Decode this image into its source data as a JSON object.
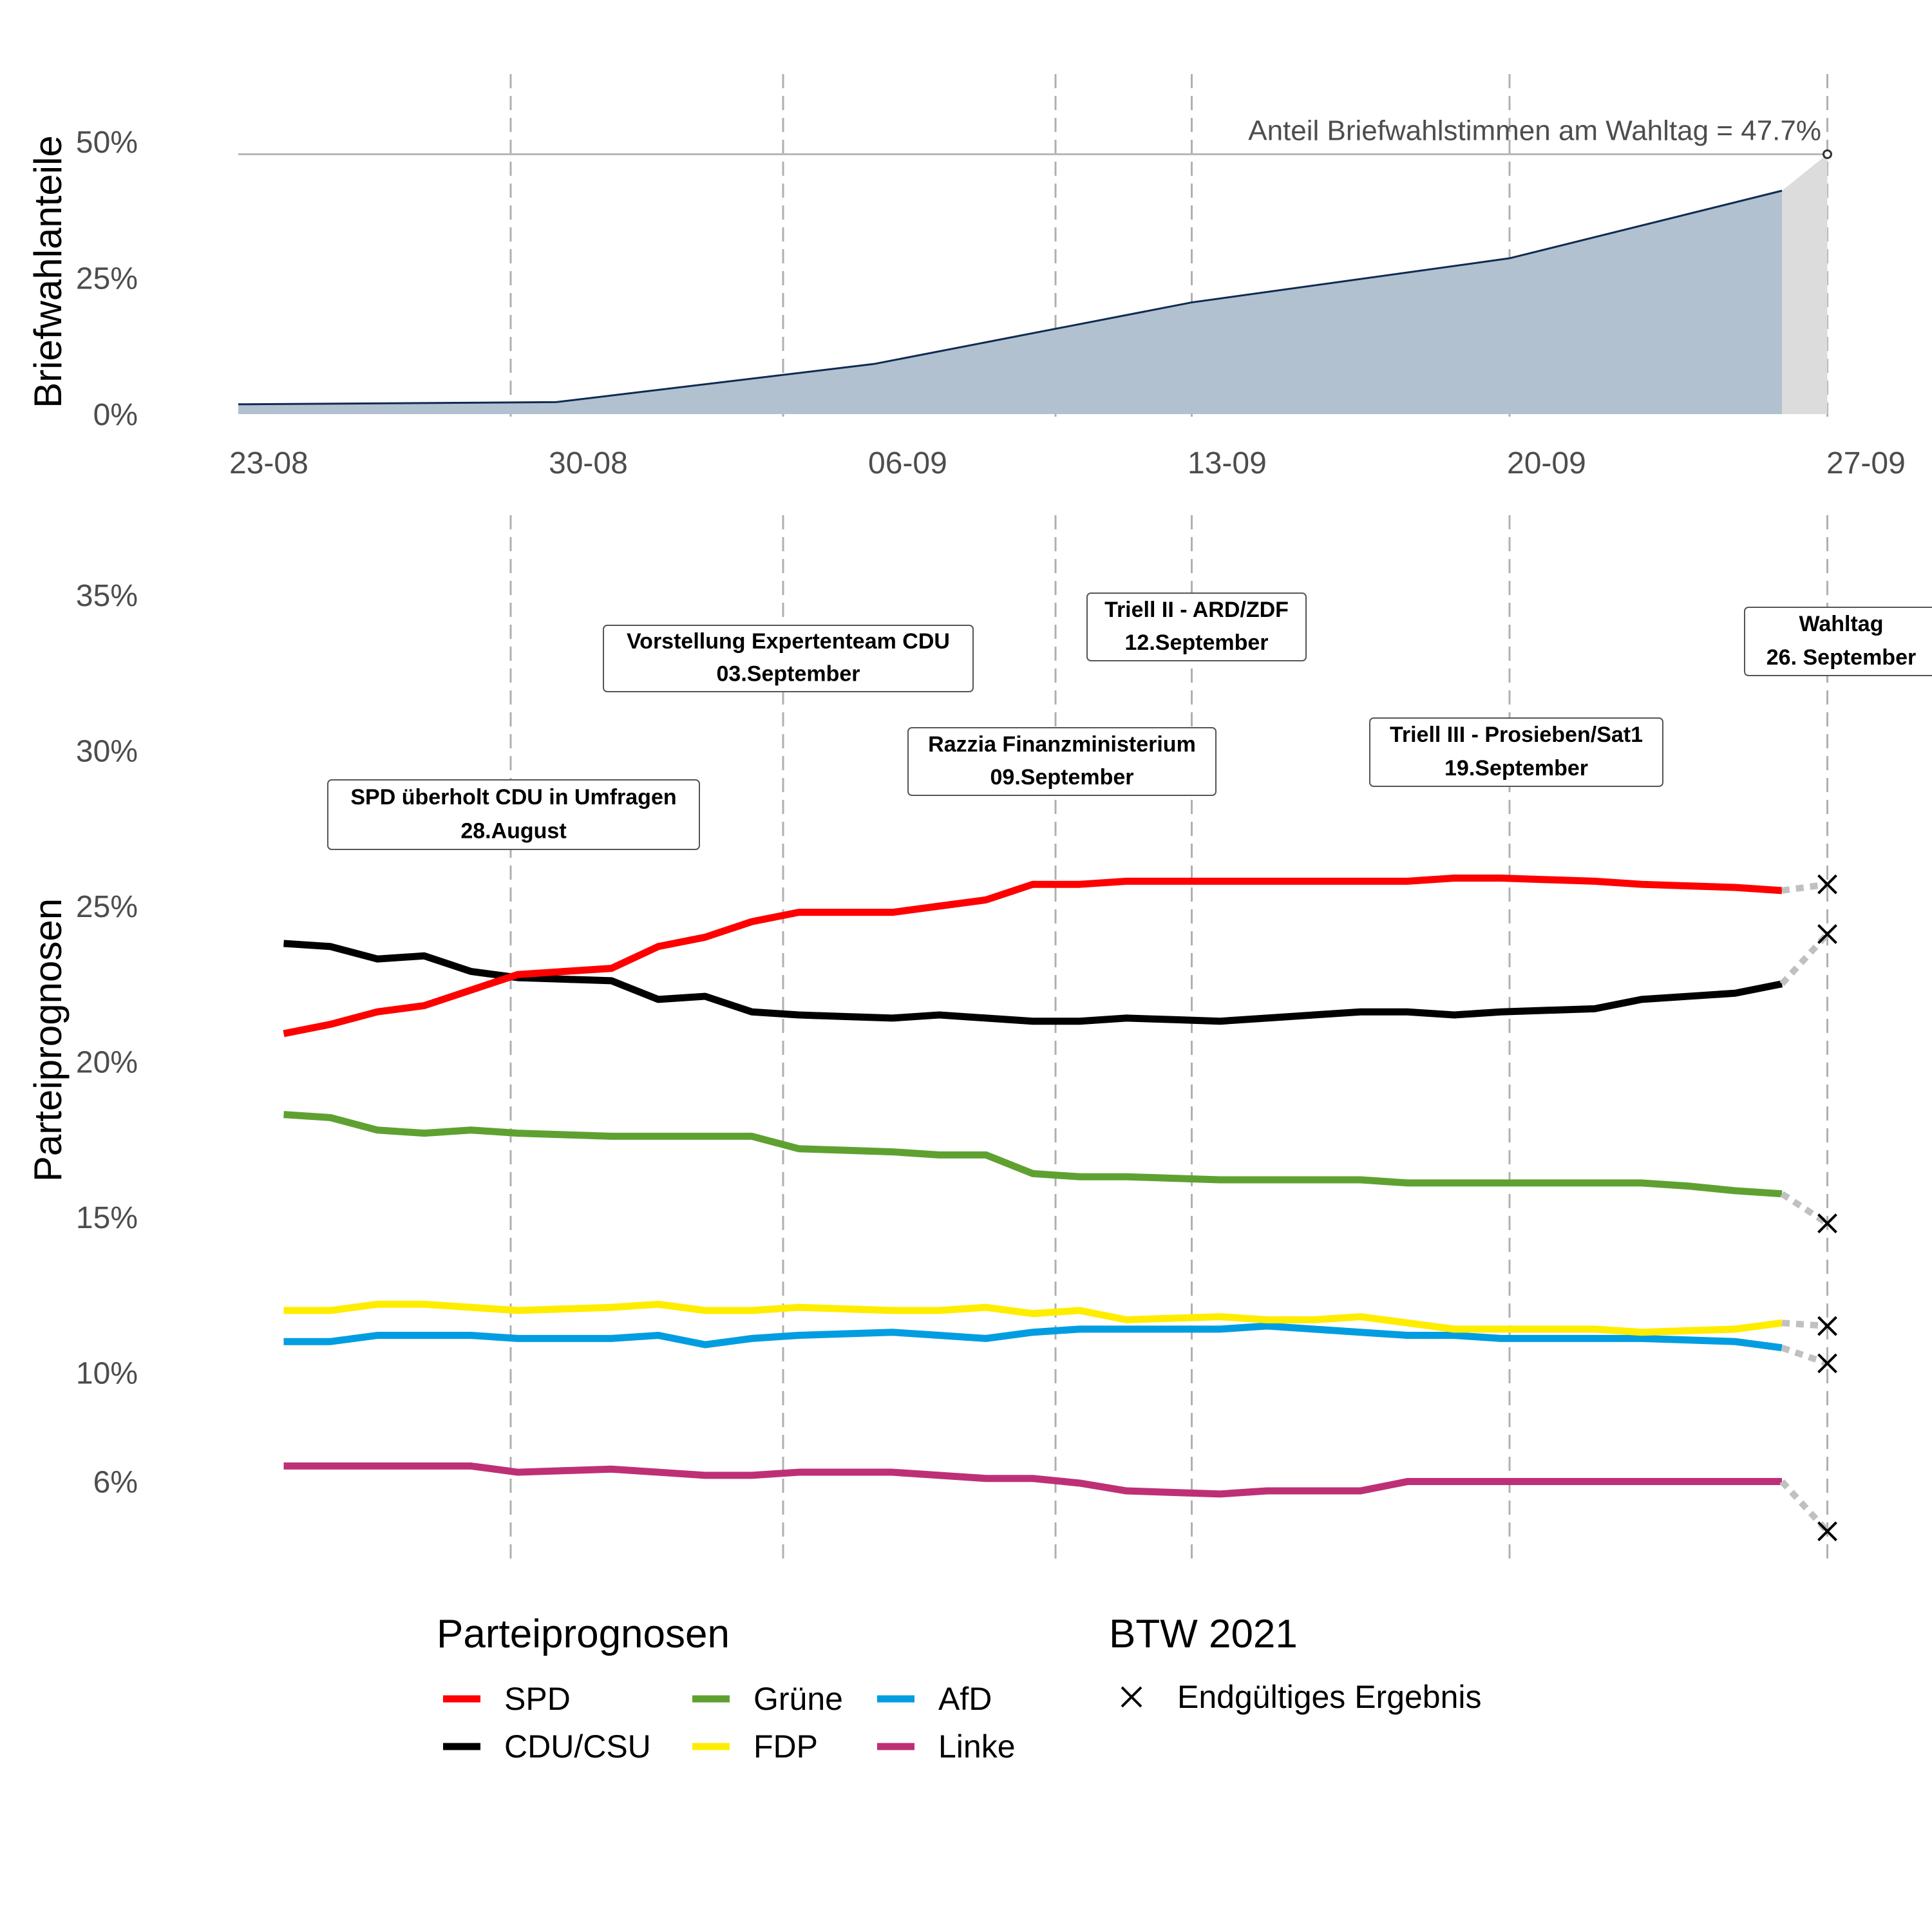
{
  "chart_data": [
    {
      "type": "area",
      "ylabel": "Briefwahlanteile",
      "ylim": [
        0,
        50
      ],
      "y_ticks": [
        "0%",
        "25%",
        "50%"
      ],
      "x_ticks": [
        "23-08",
        "30-08",
        "06-09",
        "13-09",
        "20-09",
        "27-09"
      ],
      "x": [
        "2021-08-22",
        "2021-08-29",
        "2021-09-05",
        "2021-09-12",
        "2021-09-19",
        "2021-09-25",
        "2021-09-26"
      ],
      "values": [
        1.8,
        2.2,
        9.2,
        20.5,
        28.6,
        41.0,
        47.7
      ],
      "reference_line": {
        "value": 47.7,
        "label": "Anteil Briefwahlstimmen am Wahltag = 47.7%"
      },
      "area_color": "#b1c1d0",
      "line_color": "#102a52",
      "election_day_area_color": "#dcdcdc"
    },
    {
      "type": "line",
      "ylabel": "Parteiprognosen",
      "y_ticks": [
        {
          "value": 6.5,
          "label": "6%"
        },
        {
          "value": 10,
          "label": "10%"
        },
        {
          "value": 15,
          "label": "15%"
        },
        {
          "value": 20,
          "label": "20%"
        },
        {
          "value": 25,
          "label": "25%"
        },
        {
          "value": 30,
          "label": "30%"
        },
        {
          "value": 35,
          "label": "35%"
        }
      ],
      "ylim": [
        5.0,
        36.5
      ],
      "x_start": "2021-08-23",
      "x_end": "2021-09-25",
      "event_lines": [
        "2021-08-28",
        "2021-09-03",
        "2021-09-09",
        "2021-09-12",
        "2021-09-19",
        "2021-09-26"
      ],
      "events": [
        {
          "title": "SPD überholt CDU in Umfragen",
          "date_label": "28.August"
        },
        {
          "title": "Vorstellung Expertenteam CDU",
          "date_label": "03.September"
        },
        {
          "title": "Razzia Finanzministerium",
          "date_label": "09.September"
        },
        {
          "title": "Triell II - ARD/ZDF",
          "date_label": "12.September"
        },
        {
          "title": "Triell III - Prosieben/Sat1",
          "date_label": "19.September"
        },
        {
          "title": "Wahltag",
          "date_label": "26. September"
        }
      ],
      "series": [
        {
          "name": "SPD",
          "color": "#ff0000",
          "values": [
            20.9,
            21.2,
            21.6,
            21.8,
            22.3,
            22.8,
            22.9,
            23.0,
            23.7,
            24.0,
            24.5,
            24.8,
            24.8,
            24.8,
            25.0,
            25.2,
            25.7,
            25.7,
            25.8,
            25.8,
            25.8,
            25.8,
            25.8,
            25.8,
            25.8,
            25.9,
            25.9,
            25.85,
            25.8,
            25.7,
            25.65,
            25.6,
            25.5
          ],
          "final_result": 25.7
        },
        {
          "name": "CDU/CSU",
          "color": "#000000",
          "values": [
            23.8,
            23.7,
            23.3,
            23.4,
            22.9,
            22.7,
            22.65,
            22.6,
            22.0,
            22.1,
            21.6,
            21.5,
            21.45,
            21.4,
            21.5,
            21.4,
            21.3,
            21.3,
            21.4,
            21.35,
            21.3,
            21.4,
            21.5,
            21.6,
            21.6,
            21.5,
            21.6,
            21.65,
            21.7,
            22.0,
            22.1,
            22.2,
            22.5
          ],
          "final_result": 24.1
        },
        {
          "name": "Grüne",
          "color": "#5fa131",
          "values": [
            18.3,
            18.2,
            17.8,
            17.7,
            17.8,
            17.7,
            17.65,
            17.6,
            17.6,
            17.6,
            17.6,
            17.2,
            17.15,
            17.1,
            17.0,
            17.0,
            16.4,
            16.3,
            16.3,
            16.25,
            16.2,
            16.2,
            16.2,
            16.2,
            16.1,
            16.1,
            16.1,
            16.1,
            16.1,
            16.1,
            16.0,
            15.85,
            15.75
          ],
          "final_result": 14.8
        },
        {
          "name": "FDP",
          "color": "#ffed00",
          "values": [
            12.0,
            12.0,
            12.2,
            12.2,
            12.1,
            12.0,
            12.05,
            12.1,
            12.2,
            12.0,
            12.0,
            12.1,
            12.05,
            12.0,
            12.0,
            12.1,
            11.9,
            12.0,
            11.7,
            11.75,
            11.8,
            11.7,
            11.7,
            11.8,
            11.6,
            11.4,
            11.4,
            11.4,
            11.4,
            11.3,
            11.35,
            11.4,
            11.6
          ],
          "final_result": 11.5
        },
        {
          "name": "AfD",
          "color": "#009ee0",
          "values": [
            11.0,
            11.0,
            11.2,
            11.2,
            11.2,
            11.1,
            11.1,
            11.1,
            11.2,
            10.9,
            11.1,
            11.2,
            11.25,
            11.3,
            11.2,
            11.1,
            11.3,
            11.4,
            11.4,
            11.4,
            11.4,
            11.5,
            11.4,
            11.3,
            11.2,
            11.2,
            11.1,
            11.1,
            11.1,
            11.1,
            11.05,
            11.0,
            10.8
          ],
          "final_result": 10.3
        },
        {
          "name": "Linke",
          "color": "#be3075",
          "values": [
            7.0,
            7.0,
            7.0,
            7.0,
            7.0,
            6.8,
            6.85,
            6.9,
            6.8,
            6.7,
            6.7,
            6.8,
            6.8,
            6.8,
            6.7,
            6.6,
            6.6,
            6.45,
            6.2,
            6.15,
            6.1,
            6.2,
            6.2,
            6.2,
            6.5,
            6.5,
            6.5,
            6.5,
            6.5,
            6.5,
            6.5,
            6.5,
            6.5
          ],
          "final_result": 4.9
        }
      ],
      "projection_color": "#c0c0c0",
      "marker_color": "#000000"
    }
  ],
  "legend": {
    "parties_title": "Parteiprognosen",
    "result_title": "BTW 2021",
    "result_label": "Endgültiges Ergebnis",
    "columns": [
      [
        "SPD",
        "CDU/CSU"
      ],
      [
        "Grüne",
        "FDP"
      ],
      [
        "AfD",
        "Linke"
      ]
    ]
  }
}
